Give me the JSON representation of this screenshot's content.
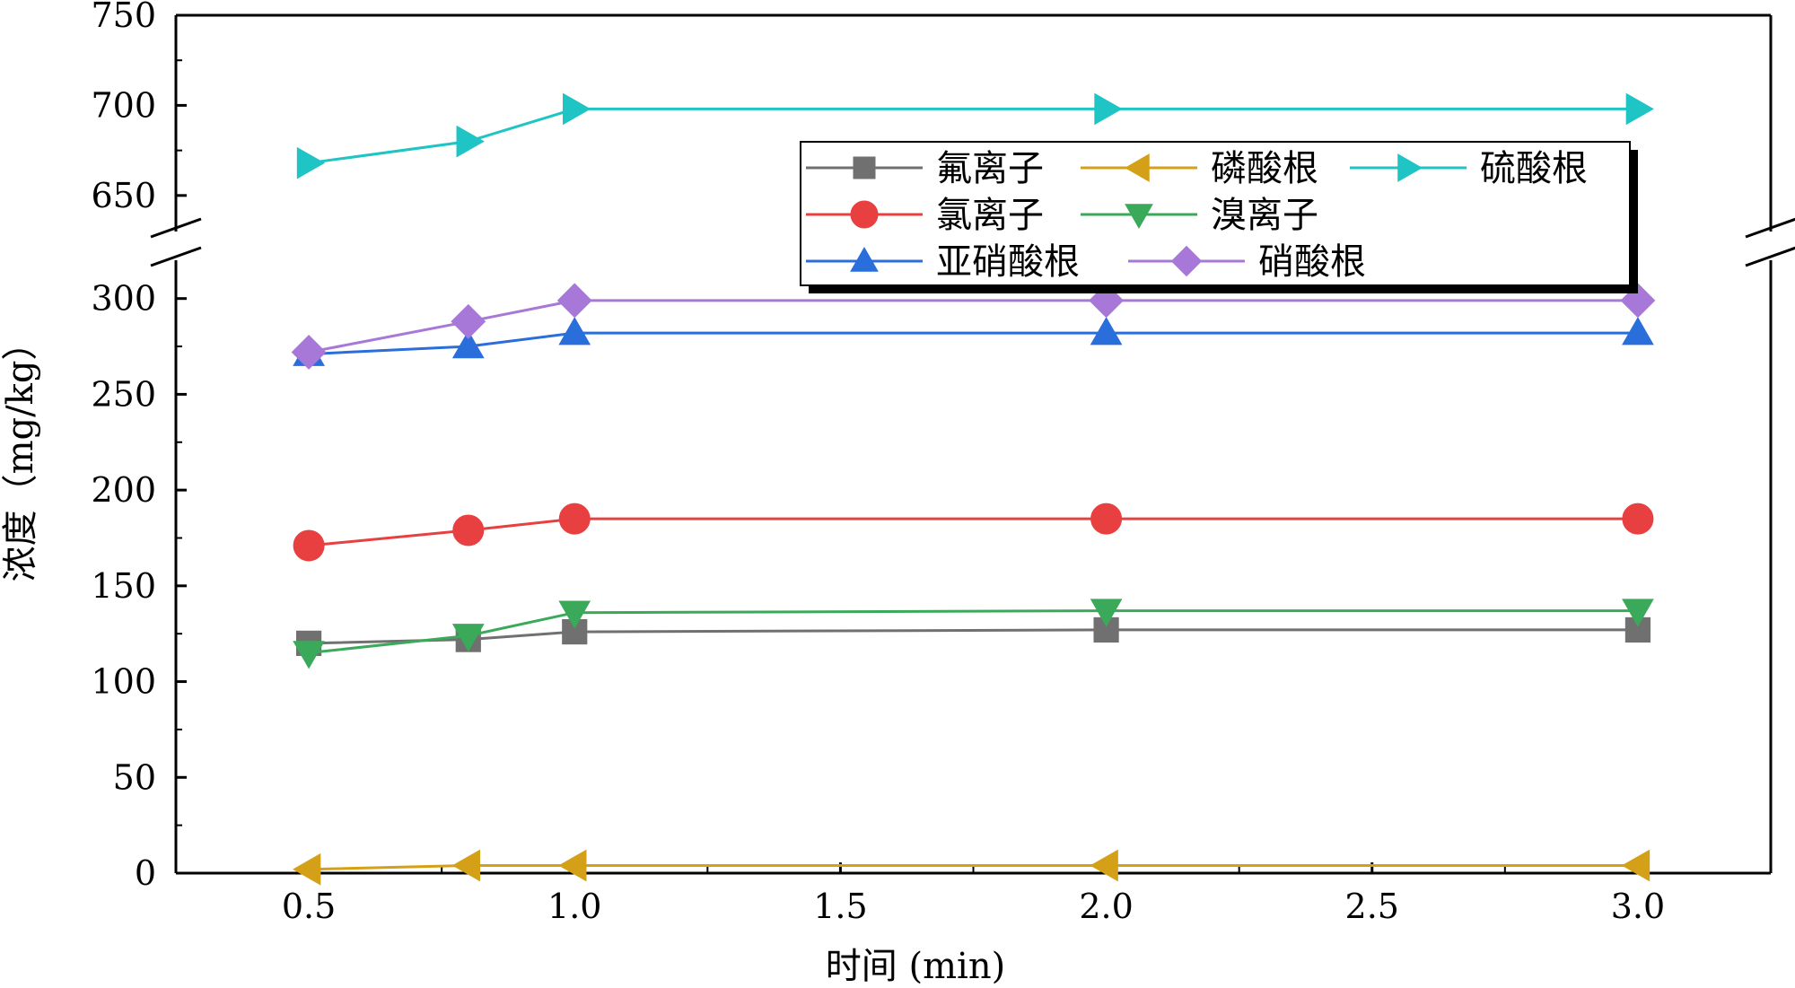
{
  "chart_data": {
    "type": "line",
    "xlabel": "时间 (min)",
    "ylabel": "浓度（mg/kg）",
    "x": [
      0.5,
      0.8,
      1.0,
      2.0,
      3.0
    ],
    "xlim": [
      0.25,
      3.25
    ],
    "xticks": [
      0.5,
      1.0,
      1.5,
      2.0,
      2.5,
      3.0
    ],
    "xtick_labels": [
      "0.5",
      "1.0",
      "1.5",
      "2.0",
      "2.5",
      "3.0"
    ],
    "y_axis_break": true,
    "ylim_lower": [
      0,
      320
    ],
    "ylim_upper": [
      630,
      750
    ],
    "yticks_lower": [
      0,
      50,
      100,
      150,
      200,
      250,
      300
    ],
    "yticks_upper": [
      650,
      700,
      750
    ],
    "ytick_labels_lower": [
      "0",
      "50",
      "100",
      "150",
      "200",
      "250",
      "300"
    ],
    "ytick_labels_upper": [
      "650",
      "700",
      "750"
    ],
    "grid": false,
    "legend_position": "top-right",
    "series": [
      {
        "name": "氟离子",
        "color": "#707070",
        "marker": "square",
        "values": [
          120,
          122,
          126,
          127,
          127
        ]
      },
      {
        "name": "磷酸根",
        "color": "#d4a017",
        "marker": "triangle-left",
        "values": [
          2,
          4,
          4,
          4,
          4
        ]
      },
      {
        "name": "硫酸根",
        "color": "#1fc4c4",
        "marker": "triangle-right",
        "values": [
          668,
          680,
          698,
          698,
          698
        ]
      },
      {
        "name": "氯离子",
        "color": "#e84040",
        "marker": "circle",
        "values": [
          171,
          179,
          185,
          185,
          185
        ]
      },
      {
        "name": "溴离子",
        "color": "#3aaa5a",
        "marker": "triangle-down",
        "values": [
          115,
          124,
          136,
          137,
          137
        ]
      },
      {
        "name": "亚硝酸根",
        "color": "#2a6edb",
        "marker": "triangle-up",
        "values": [
          271,
          275,
          282,
          282,
          282
        ]
      },
      {
        "name": "硝酸根",
        "color": "#a778d8",
        "marker": "diamond",
        "values": [
          272,
          288,
          299,
          299,
          299
        ]
      }
    ]
  }
}
